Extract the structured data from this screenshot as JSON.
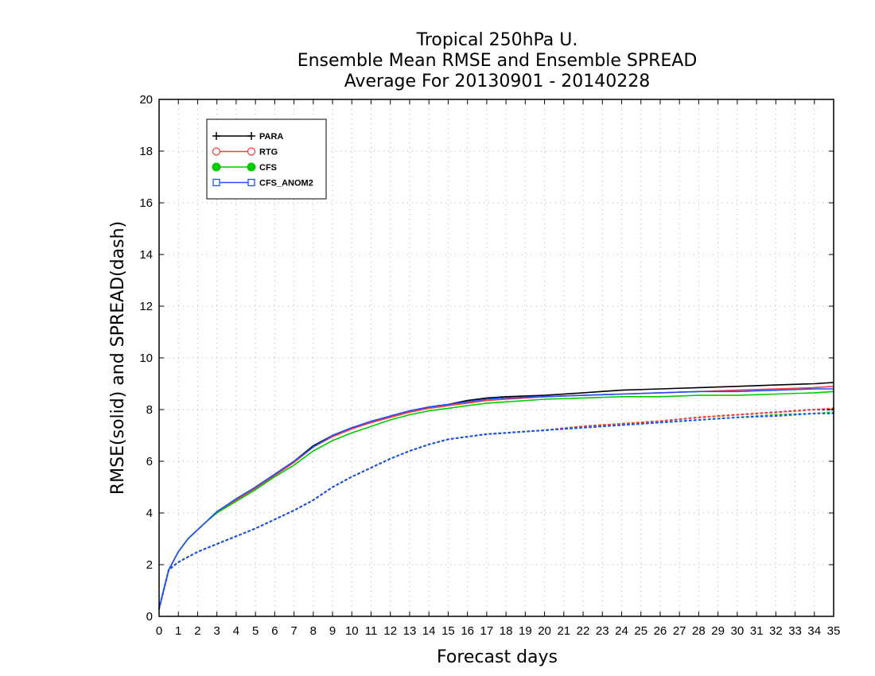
{
  "chart_data": {
    "type": "line",
    "title": [
      "Tropical 250hPa U.",
      "Ensemble Mean RMSE and Ensemble SPREAD",
      "Average For 20130901 - 20140228"
    ],
    "xlabel": "Forecast days",
    "ylabel": "RMSE(solid) and SPREAD(dash)",
    "xlim": [
      0,
      35
    ],
    "ylim": [
      0,
      20
    ],
    "xticks": [
      "0",
      "1",
      "2",
      "3",
      "4",
      "5",
      "6",
      "7",
      "8",
      "9",
      "10",
      "11",
      "12",
      "13",
      "14",
      "15",
      "16",
      "17",
      "18",
      "19",
      "20",
      "21",
      "22",
      "23",
      "24",
      "25",
      "26",
      "27",
      "28",
      "29",
      "30",
      "31",
      "32",
      "33",
      "34",
      "35"
    ],
    "yticks": [
      "0",
      "2",
      "4",
      "6",
      "8",
      "10",
      "12",
      "14",
      "16",
      "18",
      "20"
    ],
    "grid": true,
    "legend_position": "top-left",
    "series": [
      {
        "name": "PARA",
        "color": "#000000",
        "marker": "plus",
        "rmse": [
          [
            0,
            0.3
          ],
          [
            0.5,
            1.8
          ],
          [
            1,
            2.5
          ],
          [
            1.5,
            3.0
          ],
          [
            2,
            3.35
          ],
          [
            2.5,
            3.7
          ],
          [
            3,
            4.05
          ],
          [
            4,
            4.5
          ],
          [
            5,
            5.0
          ],
          [
            6,
            5.5
          ],
          [
            7,
            6.0
          ],
          [
            8,
            6.6
          ],
          [
            9,
            7.0
          ],
          [
            10,
            7.3
          ],
          [
            11,
            7.5
          ],
          [
            12,
            7.75
          ],
          [
            13,
            7.95
          ],
          [
            14,
            8.1
          ],
          [
            15,
            8.2
          ],
          [
            16,
            8.35
          ],
          [
            17,
            8.45
          ],
          [
            18,
            8.5
          ],
          [
            20,
            8.55
          ],
          [
            22,
            8.65
          ],
          [
            24,
            8.75
          ],
          [
            26,
            8.8
          ],
          [
            28,
            8.85
          ],
          [
            30,
            8.9
          ],
          [
            32,
            8.95
          ],
          [
            34,
            9.0
          ],
          [
            35,
            9.05
          ]
        ],
        "spread": [
          [
            0,
            0.3
          ],
          [
            0.5,
            1.8
          ],
          [
            1,
            2.1
          ],
          [
            2,
            2.5
          ],
          [
            3,
            2.8
          ],
          [
            4,
            3.1
          ],
          [
            5,
            3.4
          ],
          [
            6,
            3.75
          ],
          [
            7,
            4.1
          ],
          [
            8,
            4.5
          ],
          [
            9,
            5.0
          ],
          [
            10,
            5.4
          ],
          [
            11,
            5.75
          ],
          [
            12,
            6.1
          ],
          [
            13,
            6.4
          ],
          [
            14,
            6.65
          ],
          [
            15,
            6.85
          ],
          [
            16,
            6.95
          ],
          [
            17,
            7.05
          ],
          [
            18,
            7.1
          ],
          [
            20,
            7.2
          ],
          [
            22,
            7.35
          ],
          [
            24,
            7.45
          ],
          [
            26,
            7.55
          ],
          [
            28,
            7.7
          ],
          [
            30,
            7.8
          ],
          [
            32,
            7.9
          ],
          [
            34,
            8.0
          ],
          [
            35,
            8.0
          ]
        ]
      },
      {
        "name": "RTG",
        "color": "#ff3b3b",
        "marker": "open-circle",
        "rmse": [
          [
            0,
            0.3
          ],
          [
            0.5,
            1.8
          ],
          [
            1,
            2.5
          ],
          [
            1.5,
            3.0
          ],
          [
            2,
            3.35
          ],
          [
            2.5,
            3.7
          ],
          [
            3,
            4.0
          ],
          [
            4,
            4.5
          ],
          [
            5,
            4.95
          ],
          [
            6,
            5.45
          ],
          [
            7,
            5.95
          ],
          [
            8,
            6.55
          ],
          [
            9,
            6.95
          ],
          [
            10,
            7.25
          ],
          [
            11,
            7.5
          ],
          [
            12,
            7.7
          ],
          [
            13,
            7.9
          ],
          [
            14,
            8.05
          ],
          [
            15,
            8.15
          ],
          [
            16,
            8.25
          ],
          [
            17,
            8.35
          ],
          [
            18,
            8.4
          ],
          [
            20,
            8.5
          ],
          [
            22,
            8.55
          ],
          [
            24,
            8.6
          ],
          [
            26,
            8.65
          ],
          [
            28,
            8.7
          ],
          [
            30,
            8.75
          ],
          [
            32,
            8.8
          ],
          [
            34,
            8.85
          ],
          [
            35,
            8.9
          ]
        ],
        "spread": [
          [
            0,
            0.3
          ],
          [
            0.5,
            1.8
          ],
          [
            1,
            2.1
          ],
          [
            2,
            2.5
          ],
          [
            3,
            2.8
          ],
          [
            4,
            3.1
          ],
          [
            5,
            3.4
          ],
          [
            6,
            3.75
          ],
          [
            7,
            4.1
          ],
          [
            8,
            4.5
          ],
          [
            9,
            5.0
          ],
          [
            10,
            5.4
          ],
          [
            11,
            5.75
          ],
          [
            12,
            6.1
          ],
          [
            13,
            6.4
          ],
          [
            14,
            6.65
          ],
          [
            15,
            6.85
          ],
          [
            16,
            6.95
          ],
          [
            17,
            7.05
          ],
          [
            18,
            7.1
          ],
          [
            20,
            7.2
          ],
          [
            22,
            7.35
          ],
          [
            24,
            7.45
          ],
          [
            26,
            7.55
          ],
          [
            28,
            7.7
          ],
          [
            30,
            7.8
          ],
          [
            32,
            7.9
          ],
          [
            34,
            8.0
          ],
          [
            35,
            8.05
          ]
        ]
      },
      {
        "name": "CFS",
        "color": "#00cc00",
        "marker": "filled-circle",
        "rmse": [
          [
            0,
            0.3
          ],
          [
            0.5,
            1.8
          ],
          [
            1,
            2.5
          ],
          [
            1.5,
            3.0
          ],
          [
            2,
            3.35
          ],
          [
            2.5,
            3.7
          ],
          [
            3,
            4.0
          ],
          [
            4,
            4.45
          ],
          [
            5,
            4.9
          ],
          [
            6,
            5.4
          ],
          [
            7,
            5.85
          ],
          [
            8,
            6.4
          ],
          [
            9,
            6.8
          ],
          [
            10,
            7.1
          ],
          [
            11,
            7.35
          ],
          [
            12,
            7.6
          ],
          [
            13,
            7.8
          ],
          [
            14,
            7.95
          ],
          [
            15,
            8.05
          ],
          [
            16,
            8.15
          ],
          [
            17,
            8.25
          ],
          [
            18,
            8.3
          ],
          [
            20,
            8.4
          ],
          [
            22,
            8.45
          ],
          [
            24,
            8.5
          ],
          [
            26,
            8.5
          ],
          [
            28,
            8.55
          ],
          [
            30,
            8.55
          ],
          [
            32,
            8.6
          ],
          [
            34,
            8.65
          ],
          [
            35,
            8.7
          ]
        ],
        "spread": [
          [
            0,
            0.3
          ],
          [
            0.5,
            1.8
          ],
          [
            1,
            2.1
          ],
          [
            2,
            2.5
          ],
          [
            3,
            2.8
          ],
          [
            4,
            3.1
          ],
          [
            5,
            3.4
          ],
          [
            6,
            3.75
          ],
          [
            7,
            4.1
          ],
          [
            8,
            4.5
          ],
          [
            9,
            5.0
          ],
          [
            10,
            5.4
          ],
          [
            11,
            5.75
          ],
          [
            12,
            6.1
          ],
          [
            13,
            6.4
          ],
          [
            14,
            6.65
          ],
          [
            15,
            6.85
          ],
          [
            16,
            6.95
          ],
          [
            17,
            7.05
          ],
          [
            18,
            7.1
          ],
          [
            20,
            7.2
          ],
          [
            22,
            7.3
          ],
          [
            24,
            7.4
          ],
          [
            26,
            7.5
          ],
          [
            28,
            7.6
          ],
          [
            30,
            7.7
          ],
          [
            32,
            7.8
          ],
          [
            34,
            7.85
          ],
          [
            35,
            7.9
          ]
        ]
      },
      {
        "name": "CFS_ANOM2",
        "color": "#2050ff",
        "marker": "open-square",
        "rmse": [
          [
            0,
            0.3
          ],
          [
            0.5,
            1.8
          ],
          [
            1,
            2.5
          ],
          [
            1.5,
            3.0
          ],
          [
            2,
            3.35
          ],
          [
            2.5,
            3.7
          ],
          [
            3,
            4.05
          ],
          [
            4,
            4.55
          ],
          [
            5,
            5.0
          ],
          [
            6,
            5.5
          ],
          [
            7,
            6.0
          ],
          [
            8,
            6.55
          ],
          [
            9,
            7.0
          ],
          [
            10,
            7.3
          ],
          [
            11,
            7.55
          ],
          [
            12,
            7.75
          ],
          [
            13,
            7.95
          ],
          [
            14,
            8.1
          ],
          [
            15,
            8.2
          ],
          [
            16,
            8.3
          ],
          [
            17,
            8.4
          ],
          [
            18,
            8.45
          ],
          [
            20,
            8.5
          ],
          [
            22,
            8.55
          ],
          [
            24,
            8.6
          ],
          [
            26,
            8.65
          ],
          [
            28,
            8.7
          ],
          [
            30,
            8.7
          ],
          [
            32,
            8.75
          ],
          [
            34,
            8.8
          ],
          [
            35,
            8.8
          ]
        ],
        "spread": [
          [
            0,
            0.3
          ],
          [
            0.5,
            1.8
          ],
          [
            1,
            2.1
          ],
          [
            2,
            2.5
          ],
          [
            3,
            2.8
          ],
          [
            4,
            3.1
          ],
          [
            5,
            3.4
          ],
          [
            6,
            3.75
          ],
          [
            7,
            4.1
          ],
          [
            8,
            4.5
          ],
          [
            9,
            5.0
          ],
          [
            10,
            5.4
          ],
          [
            11,
            5.75
          ],
          [
            12,
            6.1
          ],
          [
            13,
            6.4
          ],
          [
            14,
            6.65
          ],
          [
            15,
            6.85
          ],
          [
            16,
            6.95
          ],
          [
            17,
            7.05
          ],
          [
            18,
            7.1
          ],
          [
            20,
            7.2
          ],
          [
            22,
            7.3
          ],
          [
            24,
            7.4
          ],
          [
            26,
            7.5
          ],
          [
            28,
            7.6
          ],
          [
            30,
            7.7
          ],
          [
            32,
            7.75
          ],
          [
            34,
            7.85
          ],
          [
            35,
            7.85
          ]
        ]
      }
    ]
  }
}
